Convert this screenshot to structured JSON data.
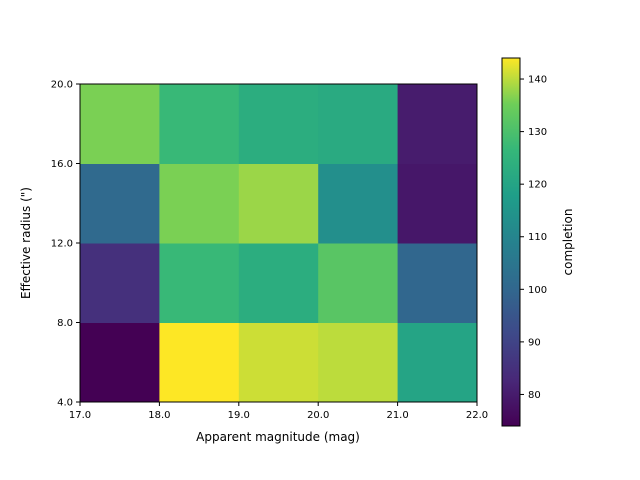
{
  "chart_data": {
    "type": "heatmap",
    "xlabel": "Apparent magnitude (mag)",
    "ylabel": "Effective radius (\")",
    "x_edges": [
      17.0,
      18.0,
      19.0,
      20.0,
      21.0,
      22.0
    ],
    "y_edges": [
      4.0,
      8.0,
      12.0,
      16.0,
      20.0
    ],
    "x_tick_labels": [
      "17.0",
      "18.0",
      "19.0",
      "20.0",
      "21.0",
      "22.0"
    ],
    "y_tick_labels": [
      "4.0",
      "8.0",
      "12.0",
      "16.0",
      "20.0"
    ],
    "xlim": [
      17.0,
      22.0
    ],
    "ylim": [
      4.0,
      20.0
    ],
    "values": [
      [
        74,
        144,
        141,
        140,
        120
      ],
      [
        85,
        127,
        123,
        132,
        100
      ],
      [
        101,
        136,
        138,
        113,
        79
      ],
      [
        136,
        127,
        123,
        122,
        80
      ]
    ],
    "colormap": "viridis",
    "colorbar": {
      "label": "completion",
      "range": [
        74,
        144
      ],
      "ticks": [
        80,
        90,
        100,
        110,
        120,
        130,
        140
      ],
      "tick_labels": [
        "80",
        "90",
        "100",
        "110",
        "120",
        "130",
        "140"
      ]
    }
  }
}
